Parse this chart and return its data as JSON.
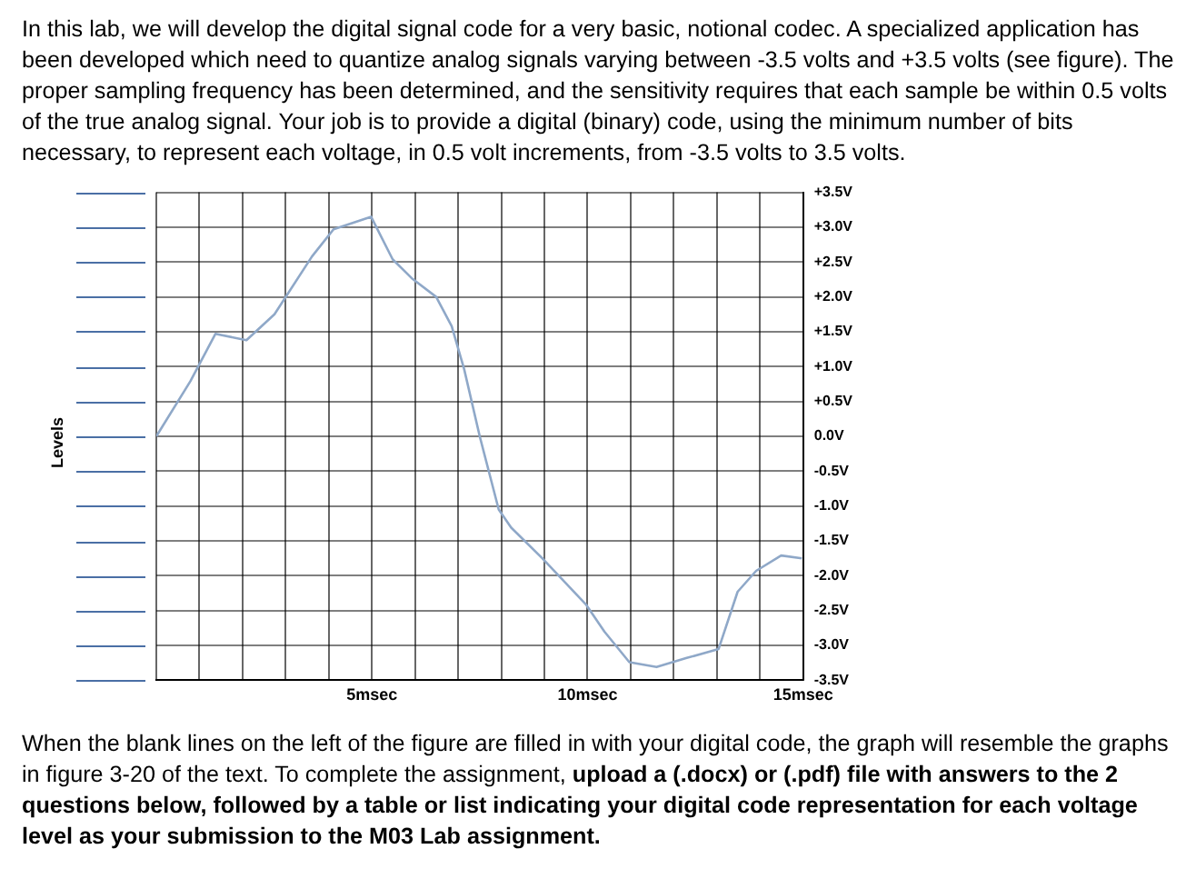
{
  "chart_data": {
    "type": "line",
    "title": "In this lab, we will develop the digital signal code for a very basic, notional codec.  A specialized application has been developed which need to quantize analog signals varying between -3.5 volts and +3.5 volts (see figure).  The proper sampling frequency has been determined, and the sensitivity requires that each sample be within 0.5 volts of the true analog signal.  Your job is to provide a digital (binary) code, using the minimum number of bits necessary, to represent each voltage, in 0.5 volt increments, from -3.5 volts to 3.5 volts.",
    "annotations": [
      "Levels",
      "When the blank lines on the left of the figure are filled in with your digital code, the graph will resemble the graphs in figure 3-20 of the text.  To complete the assignment,",
      "upload a (.docx) or (.pdf) file with answers to the 2 questions below, followed by a table or list indicating your digital code representation for each voltage level as your submission to the M03 Lab assignment."
    ],
    "series": [
      {
        "color": "#8fa8c8",
        "x": [
          0,
          0.79,
          1.37,
          2.09,
          2.74,
          3.61,
          4.11,
          4.98,
          5.48,
          5.92,
          6.49,
          6.85,
          7.14,
          7.5,
          7.94,
          8.23,
          8.95,
          9.96,
          10.39,
          10.97,
          11.6,
          12.3,
          13.04,
          13.48,
          13.91,
          14.49,
          14.97
        ],
        "values": [
          0,
          0.79,
          1.47,
          1.38,
          1.75,
          2.58,
          2.97,
          3.15,
          2.54,
          2.27,
          2.0,
          1.58,
          0.96,
          0.0,
          -1.05,
          -1.31,
          -1.75,
          -2.41,
          -2.8,
          -3.24,
          -3.31,
          -3.18,
          -3.05,
          -2.23,
          -1.93,
          -1.71,
          -1.75
        ]
      }
    ],
    "xlim": [
      0,
      15
    ],
    "xticks": [
      {
        "value": 0,
        "label": null
      },
      {
        "value": 1,
        "label": null
      },
      {
        "value": 2,
        "label": null
      },
      {
        "value": 3,
        "label": null
      },
      {
        "value": 4,
        "label": null
      },
      {
        "value": 5,
        "label": "5msec"
      },
      {
        "value": 6,
        "label": null
      },
      {
        "value": 7,
        "label": null
      },
      {
        "value": 8,
        "label": null
      },
      {
        "value": 9,
        "label": null
      },
      {
        "value": 10,
        "label": "10msec"
      },
      {
        "value": 11,
        "label": null
      },
      {
        "value": 12,
        "label": null
      },
      {
        "value": 13,
        "label": null
      },
      {
        "value": 14,
        "label": null
      },
      {
        "value": 15,
        "label": "15msec"
      }
    ],
    "ylim": [
      -3.5,
      3.5
    ],
    "yticks": [
      {
        "value": 3.5,
        "label": "+3.5V"
      },
      {
        "value": 3,
        "label": "+3.0V"
      },
      {
        "value": 2.5,
        "label": "+2.5V"
      },
      {
        "value": 2,
        "label": "+2.0V"
      },
      {
        "value": 1.5,
        "label": "+1.5V"
      },
      {
        "value": 1,
        "label": "+1.0V"
      },
      {
        "value": 0.5,
        "label": "+0.5V"
      },
      {
        "value": 0,
        "label": "0.0V"
      },
      {
        "value": -0.5,
        "label": "-0.5V"
      },
      {
        "value": -1,
        "label": "-1.0V"
      },
      {
        "value": -1.5,
        "label": "-1.5V"
      },
      {
        "value": -2,
        "label": "-2.0V"
      },
      {
        "value": -2.5,
        "label": "-2.5V"
      },
      {
        "value": -3,
        "label": "-3.0V"
      },
      {
        "value": -3.5,
        "label": "-3.5V"
      }
    ],
    "grid": true,
    "marker": "none",
    "line_style": "solid"
  }
}
